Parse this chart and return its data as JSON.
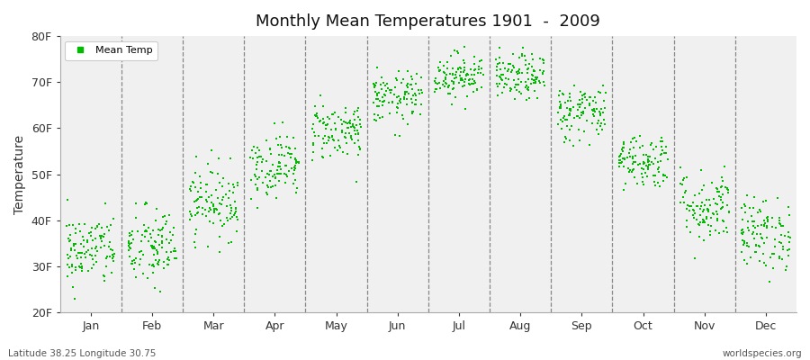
{
  "title": "Monthly Mean Temperatures 1901  -  2009",
  "ylabel": "Temperature",
  "ytick_values": [
    20,
    30,
    40,
    50,
    60,
    70,
    80
  ],
  "ylim": [
    20,
    80
  ],
  "months": [
    "Jan",
    "Feb",
    "Mar",
    "Apr",
    "May",
    "Jun",
    "Jul",
    "Aug",
    "Sep",
    "Oct",
    "Nov",
    "Dec"
  ],
  "dot_color": "#00bb00",
  "background_color": "#f0f0f0",
  "legend_label": "Mean Temp",
  "footnote_left": "Latitude 38.25 Longitude 30.75",
  "footnote_right": "worldspecies.org",
  "monthly_means": [
    33.5,
    34.0,
    44.0,
    52.0,
    59.5,
    66.5,
    71.5,
    71.0,
    63.5,
    53.0,
    43.0,
    37.0
  ],
  "monthly_stds": [
    4.0,
    4.5,
    4.0,
    3.5,
    3.2,
    2.8,
    2.5,
    2.5,
    3.2,
    3.0,
    4.0,
    4.0
  ],
  "n_years": 109
}
